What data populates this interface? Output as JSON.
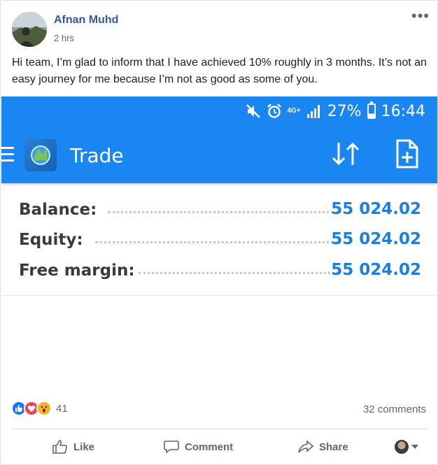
{
  "post": {
    "author": "Afnan Muhd",
    "time": "2 hrs",
    "text": "Hi team, I’m glad to inform that I have achieved 10% roughly in 3 months. It’s not an easy journey for me because I’m not as good as some of you."
  },
  "phone": {
    "status": {
      "network": "4G+",
      "battery": "27%",
      "clock": "16:44"
    },
    "app_title": "Trade",
    "rows": [
      {
        "label": "Balance:",
        "value": "55 024.02"
      },
      {
        "label": "Equity:",
        "value": "55 024.02"
      },
      {
        "label": "Free margin:",
        "value": "55 024.02"
      }
    ]
  },
  "engagement": {
    "reaction_count": "41",
    "comments": "32 comments"
  },
  "actions": {
    "like": "Like",
    "comment": "Comment",
    "share": "Share"
  },
  "colors": {
    "author_link": "#365899",
    "phone_bar": "#1a86f2",
    "value_blue": "#1a7fe0"
  }
}
